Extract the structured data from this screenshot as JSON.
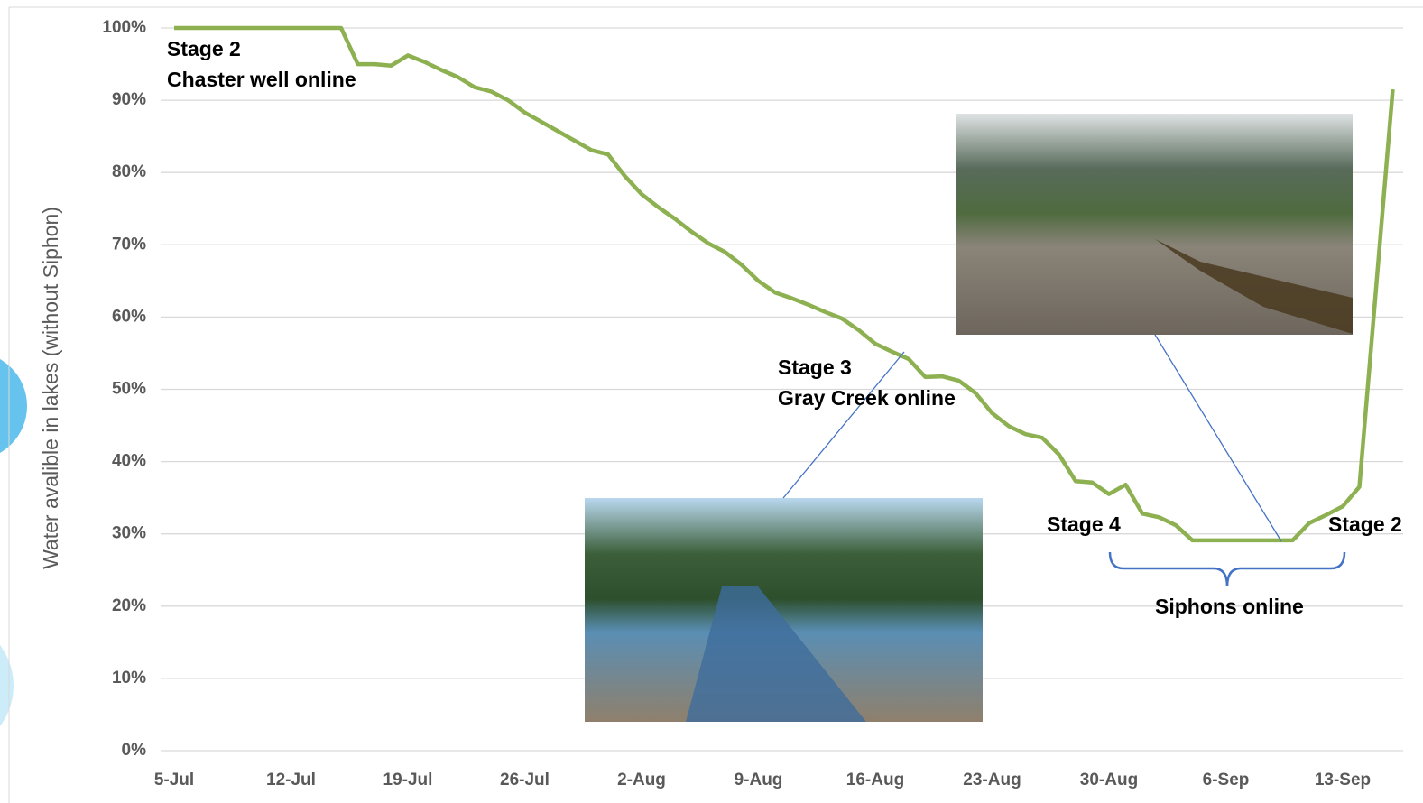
{
  "chart_data": {
    "type": "line",
    "y_label": "Water avalible in lakes (without Siphon)",
    "categories": [
      "5-Jul",
      null,
      null,
      null,
      null,
      null,
      null,
      "12-Jul",
      null,
      null,
      null,
      null,
      null,
      null,
      "19-Jul",
      null,
      null,
      null,
      null,
      null,
      null,
      "26-Jul",
      null,
      null,
      null,
      null,
      null,
      null,
      "2-Aug",
      null,
      null,
      null,
      null,
      null,
      null,
      "9-Aug",
      null,
      null,
      null,
      null,
      null,
      null,
      "16-Aug",
      null,
      null,
      null,
      null,
      null,
      null,
      "23-Aug",
      null,
      null,
      null,
      null,
      null,
      null,
      "30-Aug",
      null,
      null,
      null,
      null,
      null,
      null,
      "6-Sep",
      null,
      null,
      null,
      null,
      null,
      null,
      "13-Sep",
      null,
      null,
      null
    ],
    "series": [
      {
        "color": "#8db051",
        "values": [
          100,
          100,
          100,
          100,
          100,
          100,
          100,
          100,
          100,
          100,
          100,
          95,
          95,
          94.8,
          96.2,
          95.3,
          94.2,
          93.2,
          91.8,
          91.2,
          90.0,
          88.3,
          87,
          85.7,
          84.4,
          83.1,
          82.5,
          79.5,
          77,
          75.2,
          73.6,
          71.8,
          70.2,
          69.0,
          67.2,
          65,
          63.4,
          62.6,
          61.7,
          60.7,
          59.8,
          58.2,
          56.3,
          55.2,
          54.2,
          51.7,
          51.8,
          51.2,
          49.5,
          46.7,
          44.9,
          43.8,
          43.3,
          41,
          37.3,
          37.1,
          35.5,
          36.8,
          32.8,
          32.3,
          31.2,
          29.1,
          29.1,
          29.1,
          29.1,
          29.1,
          29.1,
          29.1,
          31.5,
          32.6,
          33.8,
          36.5,
          64,
          91.5
        ]
      }
    ],
    "ylim": [
      0,
      100
    ],
    "yticks": [
      {
        "value": 0,
        "label": "0%"
      },
      {
        "value": 10,
        "label": "10%"
      },
      {
        "value": 20,
        "label": "20%"
      },
      {
        "value": 30,
        "label": "30%"
      },
      {
        "value": 40,
        "label": "40%"
      },
      {
        "value": 50,
        "label": "50%"
      },
      {
        "value": 60,
        "label": "60%"
      },
      {
        "value": 70,
        "label": "70%"
      },
      {
        "value": 80,
        "label": "80%"
      },
      {
        "value": 90,
        "label": "90%"
      },
      {
        "value": 100,
        "label": "100%"
      }
    ],
    "grid": true,
    "annotations": [
      [
        "Stage 2",
        "Chaster well online"
      ],
      [
        "Stage 3",
        "Gray Creek online"
      ],
      [
        "Stage 4"
      ],
      [
        "Stage 2"
      ],
      [
        "Siphons online"
      ]
    ]
  }
}
